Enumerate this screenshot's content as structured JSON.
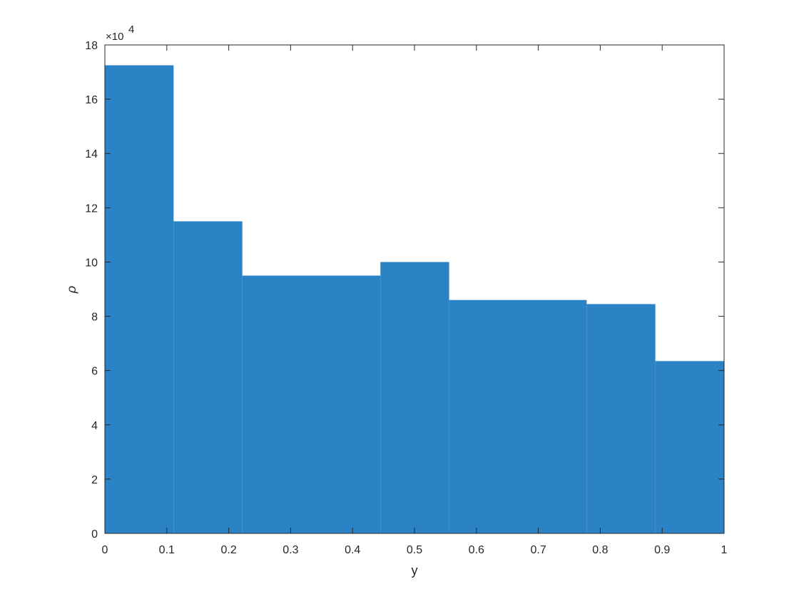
{
  "chart_data": {
    "type": "bar",
    "xlabel": "y",
    "ylabel": "ρ",
    "xlim": [
      0,
      1
    ],
    "ylim": [
      0,
      18
    ],
    "y_scale_prefix": "×10",
    "y_scale_exponent": "4",
    "xticks": [
      "0",
      "0.1",
      "0.2",
      "0.3",
      "0.4",
      "0.5",
      "0.6",
      "0.7",
      "0.8",
      "0.9",
      "1"
    ],
    "yticks": [
      "0",
      "2",
      "4",
      "6",
      "8",
      "10",
      "12",
      "14",
      "16",
      "18"
    ],
    "grid": false,
    "bar_color": "#2b83c6",
    "segments": [
      {
        "x_start": 0.0,
        "x_end": 0.111,
        "value": 17.25
      },
      {
        "x_start": 0.111,
        "x_end": 0.222,
        "value": 11.5
      },
      {
        "x_start": 0.222,
        "x_end": 0.445,
        "value": 9.5
      },
      {
        "x_start": 0.445,
        "x_end": 0.556,
        "value": 10.0
      },
      {
        "x_start": 0.556,
        "x_end": 0.778,
        "value": 8.6
      },
      {
        "x_start": 0.778,
        "x_end": 0.889,
        "value": 8.45
      },
      {
        "x_start": 0.889,
        "x_end": 1.0,
        "value": 6.35
      }
    ]
  }
}
